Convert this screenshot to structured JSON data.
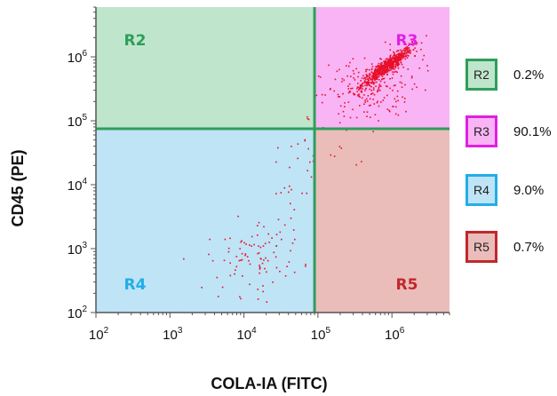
{
  "chart_data": {
    "type": "scatter",
    "xlabel": "COLA-IA (FITC)",
    "ylabel": "CD45 (PE)",
    "x_scale": "log",
    "y_scale": "log",
    "xlim": [
      100,
      6000000
    ],
    "ylim": [
      100,
      6000000
    ],
    "x_ticks": [
      {
        "base": "10",
        "exp": "2"
      },
      {
        "base": "10",
        "exp": "3"
      },
      {
        "base": "10",
        "exp": "4"
      },
      {
        "base": "10",
        "exp": "5"
      },
      {
        "base": "10",
        "exp": "6"
      }
    ],
    "y_ticks": [
      {
        "base": "10",
        "exp": "2"
      },
      {
        "base": "10",
        "exp": "3"
      },
      {
        "base": "10",
        "exp": "4"
      },
      {
        "base": "10",
        "exp": "5"
      },
      {
        "base": "10",
        "exp": "6"
      }
    ],
    "gates": {
      "x": 90000,
      "y": 75000
    },
    "regions": [
      {
        "name": "R2",
        "percent": "0.2%",
        "color": "#2e9e5b",
        "fill": "#bfe6cc"
      },
      {
        "name": "R3",
        "percent": "90.1%",
        "color": "#e020e0",
        "fill": "#f9b4f5"
      },
      {
        "name": "R4",
        "percent": "9.0%",
        "color": "#21aee8",
        "fill": "#bfe4f6"
      },
      {
        "name": "R5",
        "percent": "0.7%",
        "color": "#c0282c",
        "fill": "#eabdba"
      }
    ],
    "point_color": "#e8102a",
    "clusters": [
      {
        "region": "R3",
        "n": 700,
        "cx": 850000,
        "cy": 700000,
        "sx": 0.17,
        "sy": 0.15,
        "rho": 0.93
      },
      {
        "region": "R3",
        "n": 200,
        "cx": 500000,
        "cy": 320000,
        "sx": 0.33,
        "sy": 0.3,
        "rho": 0.35
      },
      {
        "region": "R4",
        "n": 95,
        "cx": 14000,
        "cy": 800,
        "sx": 0.32,
        "sy": 0.3,
        "rho": 0.2
      },
      {
        "region": "R4",
        "n": 25,
        "cx": 60000,
        "cy": 15000,
        "sx": 0.2,
        "sy": 0.35,
        "rho": 0.5
      },
      {
        "region": "R5",
        "n": 8,
        "cx": 250000,
        "cy": 30000,
        "sx": 0.3,
        "sy": 0.25,
        "rho": 0.0
      },
      {
        "region": "R2",
        "n": 3,
        "cx": 75000,
        "cy": 100000,
        "sx": 0.03,
        "sy": 0.05,
        "rho": 0.0
      }
    ]
  }
}
